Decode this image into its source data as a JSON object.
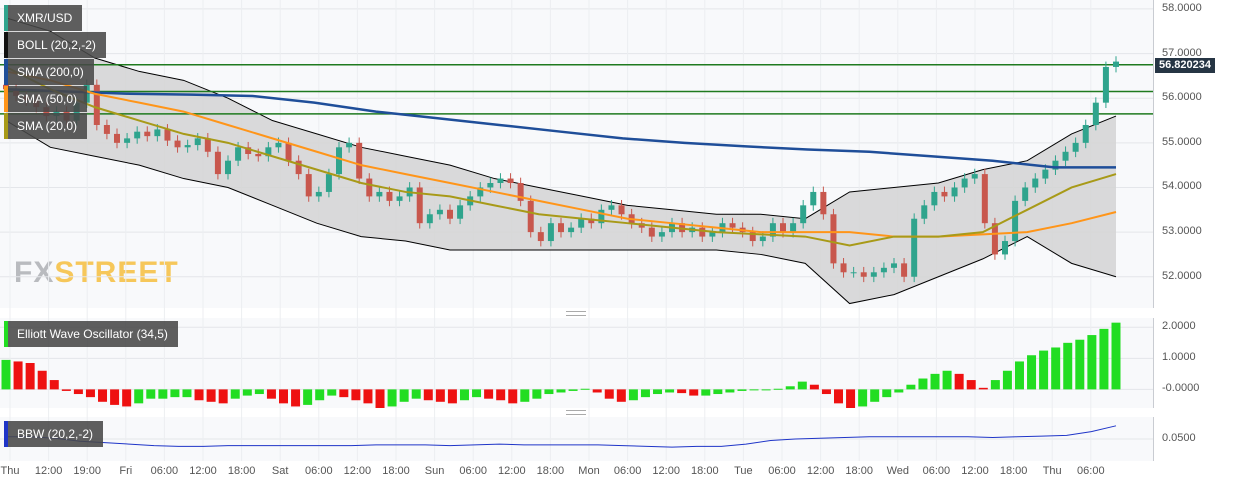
{
  "chart_data": [
    {
      "type": "candlestick",
      "title": "XMR/USD",
      "indicator_labels": [
        "BOLL (20,2,-2)",
        "SMA (200,0)",
        "SMA (50,0)",
        "SMA (20,0)"
      ],
      "ylim": [
        51.3,
        58.2
      ],
      "yticks": [
        "58.0000",
        "57.0000",
        "56.0000",
        "55.0000",
        "54.0000",
        "53.0000",
        "52.0000"
      ],
      "last_price": "56.820234",
      "horizontal_levels": [
        56.75,
        56.15,
        55.65
      ],
      "x_labels": [
        "Thu",
        "12:00",
        "19:00",
        "Fri",
        "06:00",
        "12:00",
        "18:00",
        "Sat",
        "06:00",
        "12:00",
        "18:00",
        "Sun",
        "06:00",
        "12:00",
        "18:00",
        "Mon",
        "06:00",
        "12:00",
        "18:00",
        "Tue",
        "06:00",
        "12:00",
        "18:00",
        "Wed",
        "06:00",
        "12:00",
        "18:00",
        "Thu",
        "06:00"
      ],
      "closes": [
        56.2,
        56.05,
        55.95,
        55.8,
        55.6,
        55.7,
        55.5,
        55.9,
        56.3,
        55.4,
        55.2,
        55.0,
        55.1,
        55.25,
        55.15,
        55.3,
        55.05,
        54.9,
        54.95,
        55.1,
        54.8,
        54.3,
        54.6,
        54.9,
        54.75,
        54.7,
        54.9,
        55.0,
        54.6,
        54.3,
        53.8,
        53.9,
        54.3,
        54.9,
        55.0,
        54.2,
        53.8,
        53.9,
        53.7,
        53.8,
        54.0,
        53.2,
        53.4,
        53.5,
        53.3,
        53.6,
        53.8,
        54.0,
        54.1,
        54.2,
        54.1,
        53.7,
        53.0,
        52.8,
        53.2,
        53.0,
        53.1,
        53.3,
        53.2,
        53.5,
        53.6,
        53.4,
        53.2,
        53.1,
        52.9,
        53.0,
        53.2,
        53.0,
        53.1,
        52.9,
        53.0,
        53.2,
        53.1,
        53.0,
        52.8,
        52.9,
        53.2,
        53.0,
        53.2,
        53.6,
        53.9,
        53.4,
        52.3,
        52.1,
        52.1,
        52.0,
        52.1,
        52.2,
        52.3,
        52.0,
        53.3,
        53.6,
        53.9,
        53.8,
        54.0,
        54.2,
        54.3,
        53.2,
        52.5,
        52.8,
        53.7,
        54.0,
        54.2,
        54.4,
        54.6,
        54.8,
        55.0,
        55.4,
        55.9,
        56.7,
        56.82
      ],
      "sma200": [
        56.2,
        56.15,
        56.1,
        56.08,
        56.05,
        55.9,
        55.7,
        55.55,
        55.4,
        55.25,
        55.1,
        55.0,
        54.92,
        54.85,
        54.8,
        54.7,
        54.6,
        54.45,
        54.45
      ],
      "sma50": [
        56.6,
        56.4,
        56.1,
        55.9,
        55.7,
        55.4,
        55.1,
        54.8,
        54.5,
        54.3,
        54.1,
        53.9,
        53.7,
        53.5,
        53.3,
        53.2,
        53.1,
        53.0,
        53.0,
        53.0,
        52.9,
        52.9,
        52.95,
        53.0,
        53.2,
        53.45
      ],
      "sma20": [
        56.7,
        56.2,
        55.8,
        55.5,
        55.2,
        55.0,
        54.7,
        54.4,
        54.1,
        53.9,
        53.8,
        53.6,
        53.4,
        53.3,
        53.2,
        53.1,
        53.0,
        52.95,
        52.9,
        52.7,
        52.9,
        52.9,
        53.0,
        53.5,
        54.0,
        54.3
      ],
      "boll_upper": [
        57.8,
        57.5,
        56.9,
        56.6,
        56.4,
        56.0,
        55.5,
        55.2,
        54.9,
        54.7,
        54.5,
        54.2,
        54.0,
        53.8,
        53.6,
        53.5,
        53.4,
        53.4,
        53.3,
        53.9,
        54.0,
        54.1,
        54.4,
        54.6,
        55.2,
        55.6
      ],
      "boll_lower": [
        55.5,
        54.9,
        54.7,
        54.5,
        54.2,
        54.0,
        53.6,
        53.2,
        52.9,
        52.8,
        52.6,
        52.6,
        52.6,
        52.6,
        52.6,
        52.6,
        52.6,
        52.5,
        52.3,
        51.4,
        51.6,
        52.0,
        52.4,
        52.9,
        52.3,
        52.0
      ]
    },
    {
      "type": "bar",
      "title": "Elliott Wave Oscillator (34,5)",
      "ylim": [
        -0.6,
        2.3
      ],
      "yticks": [
        "2.0000",
        "1.0000",
        "-0.0000"
      ],
      "values": [
        0.95,
        0.9,
        0.85,
        0.6,
        0.3,
        -0.05,
        -0.15,
        -0.25,
        -0.4,
        -0.5,
        -0.55,
        -0.45,
        -0.3,
        -0.3,
        -0.25,
        -0.25,
        -0.35,
        -0.4,
        -0.45,
        -0.3,
        -0.2,
        -0.15,
        -0.3,
        -0.45,
        -0.55,
        -0.5,
        -0.35,
        -0.2,
        -0.25,
        -0.35,
        -0.45,
        -0.6,
        -0.55,
        -0.4,
        -0.3,
        -0.35,
        -0.4,
        -0.45,
        -0.35,
        -0.25,
        -0.3,
        -0.35,
        -0.45,
        -0.4,
        -0.3,
        -0.15,
        -0.1,
        -0.05,
        0.02,
        -0.1,
        -0.3,
        -0.4,
        -0.35,
        -0.25,
        -0.15,
        -0.1,
        -0.12,
        -0.2,
        -0.2,
        -0.15,
        -0.1,
        -0.05,
        -0.02,
        -0.02,
        0.02,
        0.1,
        0.25,
        0.15,
        -0.15,
        -0.45,
        -0.6,
        -0.55,
        -0.4,
        -0.25,
        -0.1,
        0.15,
        0.35,
        0.5,
        0.6,
        0.5,
        0.3,
        0.05,
        0.3,
        0.6,
        0.9,
        1.1,
        1.25,
        1.35,
        1.5,
        1.6,
        1.75,
        1.95,
        2.15
      ],
      "colors": {
        "up": "#22dd22",
        "down": "#ee1111"
      }
    },
    {
      "type": "line",
      "title": "BBW (20,2,-2)",
      "ylim": [
        0.02,
        0.08
      ],
      "yticks": [
        "0.0500"
      ],
      "values": [
        0.053,
        0.053,
        0.051,
        0.047,
        0.045,
        0.043,
        0.041,
        0.04,
        0.04,
        0.041,
        0.041,
        0.041,
        0.041,
        0.041,
        0.041,
        0.042,
        0.042,
        0.042,
        0.041,
        0.042,
        0.043,
        0.042,
        0.042,
        0.042,
        0.042,
        0.041,
        0.04,
        0.039,
        0.04,
        0.04,
        0.043,
        0.048,
        0.05,
        0.051,
        0.052,
        0.053,
        0.053,
        0.053,
        0.053,
        0.053,
        0.052,
        0.053,
        0.054,
        0.055,
        0.06,
        0.068
      ]
    }
  ],
  "colors": {
    "bull": "#2fa48d",
    "bear": "#c8574d",
    "sma200": "#1f4e99",
    "sma50": "#ff9519",
    "sma20": "#a89a18",
    "level": "#1f7a1f",
    "band": "#000000",
    "bbw": "#1f35c8"
  },
  "logo": {
    "fx": "FX",
    "street": "STREET"
  }
}
